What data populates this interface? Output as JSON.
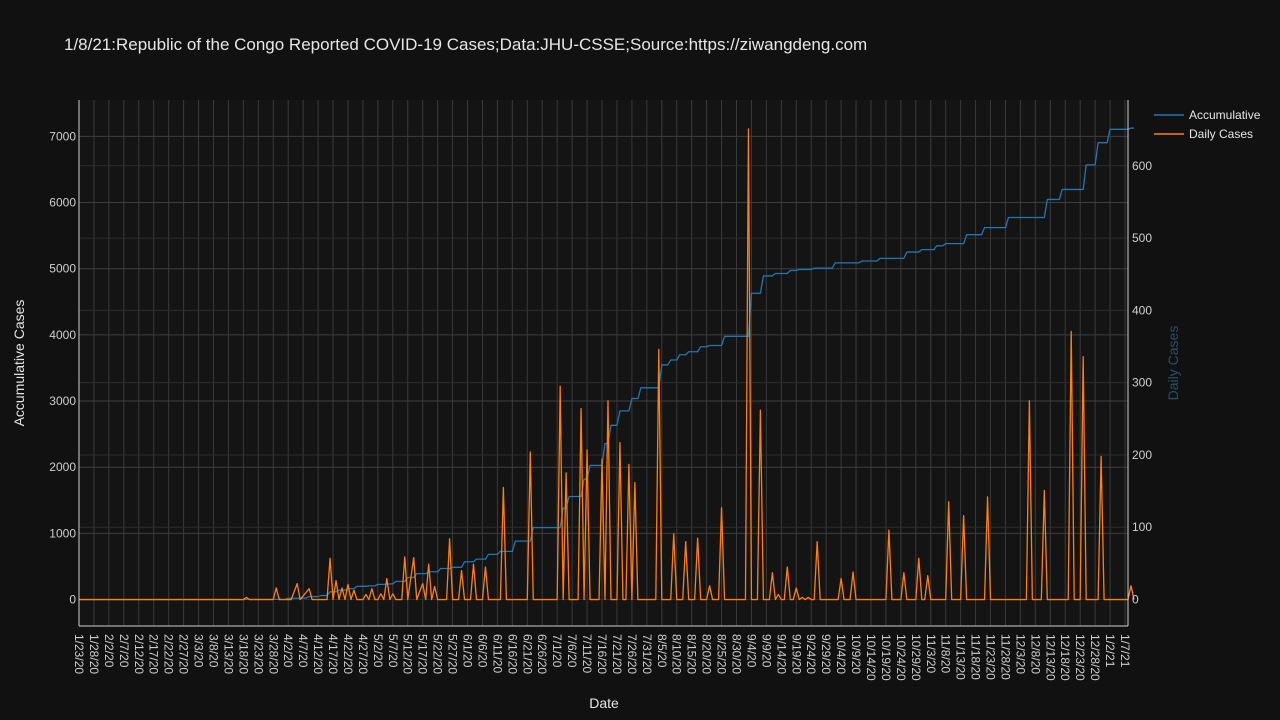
{
  "chart_data": {
    "type": "line",
    "title": "1/8/21:Republic of the Congo Reported COVID-19 Cases;Data:JHU-CSSE;Source:https://ziwangdeng.com",
    "xlabel": "Date",
    "ylabel": "Accumulative Cases",
    "y2label": "Daily Cases",
    "x_start": "1/23/20",
    "x_end": "1/7/21",
    "x_ticks": [
      "1/23/20",
      "1/28/20",
      "2/2/20",
      "2/7/20",
      "2/12/20",
      "2/17/20",
      "2/22/20",
      "2/27/20",
      "3/3/20",
      "3/8/20",
      "3/13/20",
      "3/18/20",
      "3/23/20",
      "3/28/20",
      "4/2/20",
      "4/7/20",
      "4/12/20",
      "4/17/20",
      "4/22/20",
      "4/27/20",
      "5/2/20",
      "5/7/20",
      "5/12/20",
      "5/17/20",
      "5/22/20",
      "5/27/20",
      "6/1/20",
      "6/6/20",
      "6/11/20",
      "6/16/20",
      "6/21/20",
      "6/26/20",
      "7/1/20",
      "7/6/20",
      "7/11/20",
      "7/16/20",
      "7/21/20",
      "7/26/20",
      "7/31/20",
      "8/5/20",
      "8/10/20",
      "8/15/20",
      "8/20/20",
      "8/25/20",
      "8/30/20",
      "9/4/20",
      "9/9/20",
      "9/14/20",
      "9/19/20",
      "9/24/20",
      "9/29/20",
      "10/4/20",
      "10/9/20",
      "10/14/20",
      "10/19/20",
      "10/24/20",
      "10/29/20",
      "11/3/20",
      "11/8/20",
      "11/13/20",
      "11/18/20",
      "11/23/20",
      "11/28/20",
      "12/3/20",
      "12/8/20",
      "12/13/20",
      "12/18/20",
      "12/23/20",
      "12/28/20",
      "1/2/21",
      "1/7/21"
    ],
    "y_ticks": [
      0,
      1000,
      2000,
      3000,
      4000,
      5000,
      6000,
      7000
    ],
    "y2_ticks": [
      0,
      100,
      200,
      300,
      400,
      500,
      600
    ],
    "ylim": [
      -400,
      7550
    ],
    "y2lim": [
      -36.6,
      691
    ],
    "legend_position": "top-right",
    "grid": true,
    "series": [
      {
        "name": "Accumulative",
        "color": "#1f77b4",
        "axis": "y",
        "points": [
          [
            0,
            0
          ],
          [
            55,
            0
          ],
          [
            56,
            3
          ],
          [
            69,
            3
          ],
          [
            70,
            19
          ],
          [
            73,
            19
          ],
          [
            74,
            22
          ],
          [
            76,
            22
          ],
          [
            77,
            45
          ],
          [
            80,
            45
          ],
          [
            81,
            60
          ],
          [
            83,
            60
          ],
          [
            84,
            117
          ],
          [
            86,
            117
          ],
          [
            87,
            143
          ],
          [
            89,
            143
          ],
          [
            90,
            165
          ],
          [
            92,
            165
          ],
          [
            93,
            200
          ],
          [
            96,
            200
          ],
          [
            97,
            207
          ],
          [
            99,
            207
          ],
          [
            100,
            229
          ],
          [
            102,
            229
          ],
          [
            103,
            236
          ],
          [
            105,
            236
          ],
          [
            106,
            274
          ],
          [
            109,
            274
          ],
          [
            110,
            333
          ],
          [
            112,
            333
          ],
          [
            113,
            391
          ],
          [
            116,
            391
          ],
          [
            117,
            420
          ],
          [
            120,
            420
          ],
          [
            121,
            469
          ],
          [
            124,
            469
          ],
          [
            125,
            487
          ],
          [
            128,
            487
          ],
          [
            129,
            571
          ],
          [
            132,
            571
          ],
          [
            133,
            611
          ],
          [
            136,
            611
          ],
          [
            137,
            683
          ],
          [
            140,
            683
          ],
          [
            141,
            728
          ],
          [
            145,
            728
          ],
          [
            146,
            883
          ],
          [
            151,
            883
          ],
          [
            152,
            1087
          ],
          [
            161,
            1087
          ],
          [
            162,
            1382
          ],
          [
            163,
            1382
          ],
          [
            164,
            1557
          ],
          [
            168,
            1557
          ],
          [
            169,
            1821
          ],
          [
            170,
            1821
          ],
          [
            171,
            2028
          ],
          [
            175,
            2028
          ],
          [
            176,
            2358
          ],
          [
            177,
            2358
          ],
          [
            178,
            2633
          ],
          [
            180,
            2633
          ],
          [
            181,
            2851
          ],
          [
            184,
            2851
          ],
          [
            185,
            3038
          ],
          [
            187,
            3038
          ],
          [
            188,
            3200
          ],
          [
            194,
            3200
          ],
          [
            195,
            3546
          ],
          [
            197,
            3546
          ],
          [
            198,
            3620
          ],
          [
            200,
            3620
          ],
          [
            201,
            3700
          ],
          [
            203,
            3700
          ],
          [
            204,
            3745
          ],
          [
            207,
            3745
          ],
          [
            208,
            3821
          ],
          [
            210,
            3821
          ],
          [
            211,
            3840
          ],
          [
            215,
            3840
          ],
          [
            216,
            3978
          ],
          [
            224,
            3978
          ],
          [
            225,
            4629
          ],
          [
            228,
            4629
          ],
          [
            229,
            4891
          ],
          [
            232,
            4891
          ],
          [
            233,
            4928
          ],
          [
            237,
            4928
          ],
          [
            238,
            4973
          ],
          [
            240,
            4973
          ],
          [
            241,
            4989
          ],
          [
            245,
            4989
          ],
          [
            246,
            5008
          ],
          [
            252,
            5008
          ],
          [
            253,
            5088
          ],
          [
            261,
            5088
          ],
          [
            262,
            5117
          ],
          [
            267,
            5117
          ],
          [
            268,
            5156
          ],
          [
            276,
            5156
          ],
          [
            277,
            5252
          ],
          [
            281,
            5252
          ],
          [
            282,
            5289
          ],
          [
            286,
            5289
          ],
          [
            287,
            5346
          ],
          [
            289,
            5346
          ],
          [
            290,
            5379
          ],
          [
            296,
            5379
          ],
          [
            297,
            5514
          ],
          [
            302,
            5514
          ],
          [
            303,
            5621
          ],
          [
            310,
            5621
          ],
          [
            311,
            5774
          ],
          [
            323,
            5774
          ],
          [
            324,
            6047
          ],
          [
            328,
            6047
          ],
          [
            329,
            6198
          ],
          [
            336,
            6198
          ],
          [
            337,
            6569
          ],
          [
            340,
            6569
          ],
          [
            341,
            6905
          ],
          [
            344,
            6905
          ],
          [
            345,
            7107
          ],
          [
            351,
            7107
          ],
          [
            352,
            7126
          ],
          [
            353,
            7126
          ]
        ]
      },
      {
        "name": "Daily Cases",
        "color": "#ff7f0e",
        "axis": "y2",
        "points": [
          [
            0,
            0
          ],
          [
            55,
            0
          ],
          [
            56,
            3
          ],
          [
            57,
            0
          ],
          [
            65,
            0
          ],
          [
            66,
            16
          ],
          [
            67,
            0
          ],
          [
            69,
            0
          ],
          [
            70,
            0
          ],
          [
            71,
            0
          ],
          [
            73,
            22
          ],
          [
            74,
            0
          ],
          [
            77,
            15
          ],
          [
            78,
            0
          ],
          [
            80,
            0
          ],
          [
            81,
            0
          ],
          [
            82,
            0
          ],
          [
            83,
            0
          ],
          [
            84,
            57
          ],
          [
            85,
            0
          ],
          [
            86,
            26
          ],
          [
            87,
            0
          ],
          [
            88,
            16
          ],
          [
            89,
            0
          ],
          [
            90,
            21
          ],
          [
            91,
            0
          ],
          [
            92,
            13
          ],
          [
            93,
            0
          ],
          [
            94,
            0
          ],
          [
            95,
            0
          ],
          [
            96,
            7
          ],
          [
            97,
            0
          ],
          [
            98,
            15
          ],
          [
            99,
            0
          ],
          [
            100,
            0
          ],
          [
            101,
            8
          ],
          [
            102,
            0
          ],
          [
            103,
            29
          ],
          [
            104,
            0
          ],
          [
            105,
            8
          ],
          [
            106,
            0
          ],
          [
            108,
            0
          ],
          [
            109,
            59
          ],
          [
            110,
            0
          ],
          [
            112,
            58
          ],
          [
            113,
            0
          ],
          [
            115,
            22
          ],
          [
            116,
            0
          ],
          [
            117,
            49
          ],
          [
            118,
            0
          ],
          [
            119,
            18
          ],
          [
            120,
            0
          ],
          [
            123,
            0
          ],
          [
            124,
            84
          ],
          [
            125,
            0
          ],
          [
            127,
            0
          ],
          [
            128,
            40
          ],
          [
            129,
            0
          ],
          [
            131,
            0
          ],
          [
            132,
            49
          ],
          [
            133,
            0
          ],
          [
            135,
            0
          ],
          [
            136,
            45
          ],
          [
            137,
            0
          ],
          [
            141,
            0
          ],
          [
            142,
            155
          ],
          [
            143,
            0
          ],
          [
            150,
            0
          ],
          [
            151,
            204
          ],
          [
            152,
            0
          ],
          [
            160,
            0
          ],
          [
            161,
            295
          ],
          [
            162,
            0
          ],
          [
            163,
            175
          ],
          [
            164,
            0
          ],
          [
            167,
            0
          ],
          [
            168,
            264
          ],
          [
            169,
            0
          ],
          [
            170,
            207
          ],
          [
            171,
            0
          ],
          [
            174,
            0
          ],
          [
            175,
            194
          ],
          [
            176,
            0
          ],
          [
            177,
            275
          ],
          [
            178,
            0
          ],
          [
            180,
            0
          ],
          [
            181,
            217
          ],
          [
            182,
            0
          ],
          [
            183,
            0
          ],
          [
            184,
            187
          ],
          [
            185,
            0
          ],
          [
            186,
            162
          ],
          [
            187,
            0
          ],
          [
            193,
            0
          ],
          [
            194,
            346
          ],
          [
            195,
            0
          ],
          [
            198,
            0
          ],
          [
            199,
            91
          ],
          [
            200,
            0
          ],
          [
            202,
            0
          ],
          [
            203,
            80
          ],
          [
            204,
            0
          ],
          [
            206,
            0
          ],
          [
            207,
            85
          ],
          [
            208,
            0
          ],
          [
            210,
            0
          ],
          [
            211,
            19
          ],
          [
            212,
            0
          ],
          [
            214,
            0
          ],
          [
            215,
            127
          ],
          [
            216,
            0
          ],
          [
            223,
            0
          ],
          [
            224,
            651
          ],
          [
            225,
            0
          ],
          [
            227,
            0
          ],
          [
            228,
            262
          ],
          [
            229,
            0
          ],
          [
            231,
            0
          ],
          [
            232,
            37
          ],
          [
            233,
            0
          ],
          [
            234,
            7
          ],
          [
            235,
            0
          ],
          [
            236,
            0
          ],
          [
            237,
            45
          ],
          [
            238,
            0
          ],
          [
            239,
            0
          ],
          [
            240,
            16
          ],
          [
            241,
            0
          ],
          [
            242,
            3
          ],
          [
            243,
            0
          ],
          [
            244,
            3
          ],
          [
            245,
            0
          ],
          [
            246,
            0
          ],
          [
            247,
            80
          ],
          [
            248,
            0
          ],
          [
            254,
            0
          ],
          [
            255,
            29
          ],
          [
            256,
            0
          ],
          [
            258,
            0
          ],
          [
            259,
            38
          ],
          [
            260,
            0
          ],
          [
            270,
            0
          ],
          [
            271,
            96
          ],
          [
            272,
            0
          ],
          [
            275,
            0
          ],
          [
            276,
            37
          ],
          [
            277,
            0
          ],
          [
            280,
            0
          ],
          [
            281,
            57
          ],
          [
            282,
            0
          ],
          [
            283,
            0
          ],
          [
            284,
            33
          ],
          [
            285,
            0
          ],
          [
            290,
            0
          ],
          [
            291,
            135
          ],
          [
            292,
            0
          ],
          [
            295,
            0
          ],
          [
            296,
            116
          ],
          [
            297,
            0
          ],
          [
            303,
            0
          ],
          [
            304,
            142
          ],
          [
            305,
            0
          ],
          [
            317,
            0
          ],
          [
            318,
            275
          ],
          [
            319,
            0
          ],
          [
            322,
            0
          ],
          [
            323,
            151
          ],
          [
            324,
            0
          ],
          [
            331,
            0
          ],
          [
            332,
            371
          ],
          [
            333,
            0
          ],
          [
            335,
            0
          ],
          [
            336,
            336
          ],
          [
            337,
            0
          ],
          [
            341,
            0
          ],
          [
            342,
            198
          ],
          [
            343,
            0
          ],
          [
            351,
            0
          ],
          [
            352,
            19
          ],
          [
            353,
            0
          ]
        ]
      }
    ]
  }
}
